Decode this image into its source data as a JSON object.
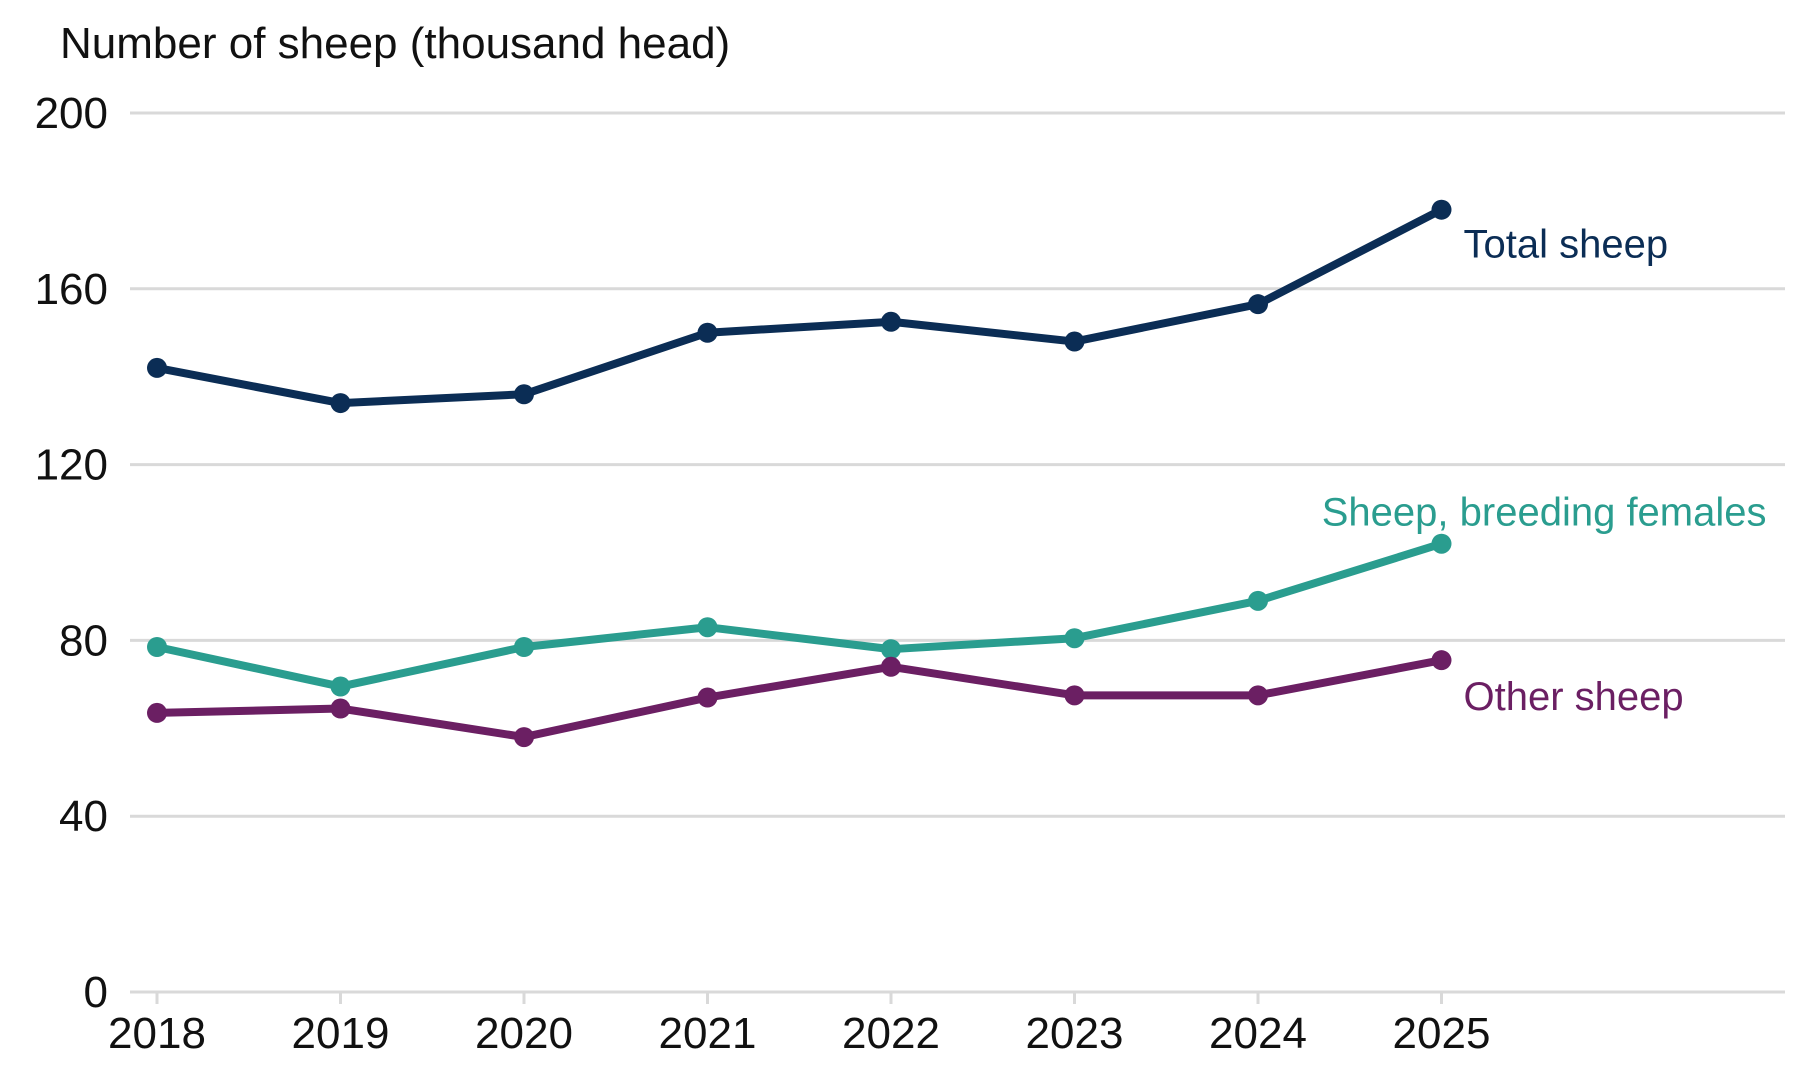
{
  "chart_data": {
    "type": "line",
    "ylabel": "Number of sheep (thousand head)",
    "xlabel": "",
    "x": [
      "2018",
      "2019",
      "2020",
      "2021",
      "2022",
      "2023",
      "2024",
      "2025"
    ],
    "ylim": [
      0,
      200
    ],
    "yticks": [
      "0",
      "40",
      "80",
      "120",
      "160",
      "200"
    ],
    "grid": "horizontal",
    "legend": "direct-labels",
    "series": [
      {
        "name": "Total sheep",
        "color": "#0b2d55",
        "values": [
          142,
          134,
          136,
          150,
          152.5,
          148,
          156.5,
          178
        ]
      },
      {
        "name": "Sheep, breeding females",
        "color": "#2a9d8f",
        "values": [
          78.5,
          69.5,
          78.5,
          83,
          78,
          80.5,
          89,
          102
        ]
      },
      {
        "name": "Other sheep",
        "color": "#6b1f63",
        "values": [
          63.5,
          64.5,
          58,
          67,
          74,
          67.5,
          67.5,
          75.5
        ]
      }
    ]
  }
}
